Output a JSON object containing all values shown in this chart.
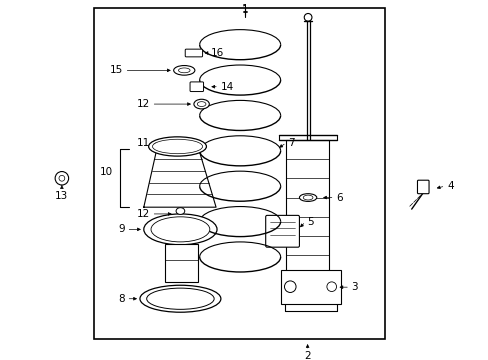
{
  "bg_color": "#ffffff",
  "line_color": "#000000",
  "fig_width": 4.89,
  "fig_height": 3.6,
  "dpi": 100,
  "font_size": 7.5
}
